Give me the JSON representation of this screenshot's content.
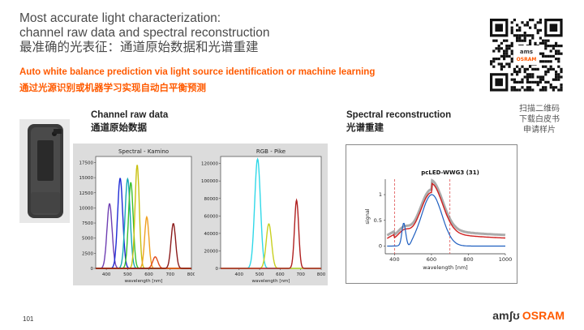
{
  "slide": {
    "title_line1": "Most accurate light characterization:",
    "title_line2": "channel raw data and spectral reconstruction",
    "title_line3": "最准确的光表征：通道原始数据和光谱重建",
    "subtitle_en": "Auto white balance prediction via light source identification or machine learning",
    "subtitle_cn": "通过光源识别或机器学习实现自动白平衡预测",
    "page_number": "101"
  },
  "left_section": {
    "heading_en": "Channel raw data",
    "heading_cn": "通道原始数据"
  },
  "right_section": {
    "heading_en": "Spectral reconstruction",
    "heading_cn": "光谱重建"
  },
  "qr": {
    "logo_line1": "ams",
    "logo_line2": "OSRAM",
    "caption_line1": "扫描二维码",
    "caption_line2": "下载白皮书",
    "caption_line3": "申请样片"
  },
  "footer_logo": {
    "ams": "amʃʊ",
    "osram": "OSRAM"
  },
  "colors": {
    "accent": "#ff5a00",
    "text": "#4a4a4a"
  },
  "chart_data": [
    {
      "type": "line",
      "title": "Spectral - Kamino",
      "xlabel": "wavelength [nm]",
      "xlim": [
        350,
        800
      ],
      "ylim": [
        0,
        18500
      ],
      "xticks": [
        400,
        500,
        600,
        700,
        800
      ],
      "yticks": [
        0,
        2500,
        5000,
        7500,
        10000,
        12500,
        15000,
        17500
      ],
      "series": [
        {
          "color": "#6f3fb3",
          "peak_x": 415,
          "peak_y": 10700,
          "width": 12
        },
        {
          "color": "#1f2bd6",
          "peak_x": 465,
          "peak_y": 14900,
          "width": 12
        },
        {
          "color": "#16a9b5",
          "peak_x": 500,
          "peak_y": 14800,
          "width": 12
        },
        {
          "color": "#3bc02b",
          "peak_x": 515,
          "peak_y": 14200,
          "width": 11
        },
        {
          "color": "#c8c010",
          "peak_x": 545,
          "peak_y": 17100,
          "width": 10
        },
        {
          "color": "#f0a020",
          "peak_x": 590,
          "peak_y": 8500,
          "width": 10
        },
        {
          "color": "#e04a1a",
          "peak_x": 630,
          "peak_y": 1900,
          "width": 12
        },
        {
          "color": "#8b1a1a",
          "peak_x": 715,
          "peak_y": 7400,
          "width": 11
        }
      ]
    },
    {
      "type": "line",
      "title": "RGB - Pike",
      "xlabel": "wavelength [nm]",
      "xlim": [
        310,
        800
      ],
      "ylim": [
        0,
        128000
      ],
      "xticks": [
        400,
        500,
        600,
        700,
        800
      ],
      "yticks": [
        0,
        20000,
        40000,
        60000,
        80000,
        100000,
        120000
      ],
      "series": [
        {
          "color": "#30d8e8",
          "peak_x": 490,
          "peak_y": 125000,
          "width": 14
        },
        {
          "color": "#c8d020",
          "peak_x": 545,
          "peak_y": 51000,
          "width": 13
        },
        {
          "color": "#b02020",
          "peak_x": 680,
          "peak_y": 78000,
          "width": 10
        }
      ]
    },
    {
      "type": "line",
      "title": "pcLED-WWG3 (31)",
      "xlabel": "wavelength [nm]",
      "ylabel": "signal",
      "xlim": [
        350,
        1000
      ],
      "ylim": [
        -0.15,
        1.3
      ],
      "xticks": [
        400,
        600,
        800,
        1000
      ],
      "yticks": [
        0,
        0.5,
        1
      ],
      "reference_lines_x": [
        400,
        700
      ],
      "series": [
        {
          "color": "#1f5fc0"
        },
        {
          "color": "#d02020"
        },
        {
          "color": "#888888"
        }
      ]
    }
  ]
}
